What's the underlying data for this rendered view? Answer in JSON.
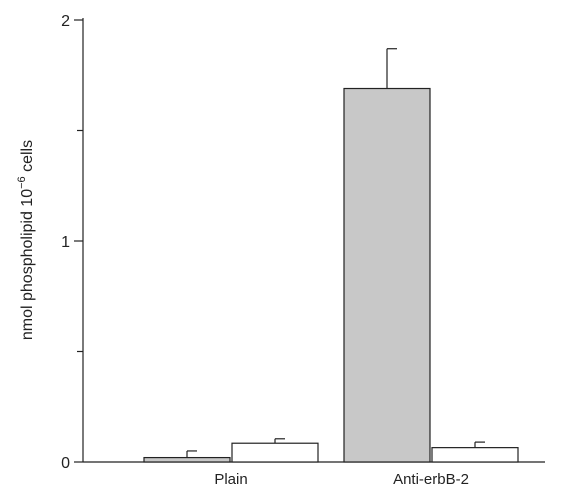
{
  "chart_data": {
    "type": "bar",
    "ylabel_parts": [
      "nmol phospholipid 10",
      "−6",
      " cells"
    ],
    "categories": [
      "Plain",
      "Anti-erbB-2"
    ],
    "ylim": [
      0,
      2
    ],
    "yticks": [
      0,
      1,
      2
    ],
    "ytick_labels": [
      "0",
      "1",
      "2"
    ],
    "y_minor_ticks": [
      0.5,
      1.5
    ],
    "series": [
      {
        "fill": "#c8c8c8",
        "values": [
          0.02,
          1.69
        ],
        "errors": [
          0.03,
          0.18
        ]
      },
      {
        "fill": "#ffffff",
        "values": [
          0.085,
          0.065
        ],
        "errors": [
          0.02,
          0.025
        ]
      }
    ],
    "grid": false,
    "legend": "none"
  }
}
